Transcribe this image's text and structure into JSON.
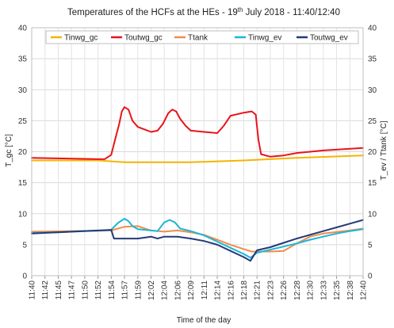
{
  "chart_data": {
    "type": "line",
    "title": {
      "prefix": "Temperatures of the HCFs at the HEs - 19",
      "sup": "th",
      "suffix": " July 2018 - 11:40/12:40"
    },
    "xlabel": "Time of the day",
    "ylabel_left": "T_gc [°C]",
    "ylabel_right": "T_ev / Ttank [°C]",
    "ylim_left": [
      0,
      40
    ],
    "ylim_right": [
      0,
      40
    ],
    "yticks": [
      "0",
      "5",
      "10",
      "15",
      "20",
      "25",
      "30",
      "35",
      "40"
    ],
    "x_tick_labels": [
      "11:40",
      "11:42",
      "11:45",
      "11:47",
      "11:50",
      "11:52",
      "11:54",
      "11:57",
      "11:59",
      "12:02",
      "12:04",
      "12:06",
      "12:09",
      "12:11",
      "12:14",
      "12:16",
      "12:18",
      "12:21",
      "12:23",
      "12:26",
      "12:28",
      "12:30",
      "12:33",
      "12:35",
      "12:38",
      "12:40"
    ],
    "grid": true,
    "legend_position": "top",
    "series": [
      {
        "name": "Tinwg_gc",
        "color": "#f5b400",
        "axis": "left",
        "points": [
          [
            0,
            18.6
          ],
          [
            5,
            18.6
          ],
          [
            7,
            18.3
          ],
          [
            12,
            18.3
          ],
          [
            16,
            18.6
          ],
          [
            18,
            18.8
          ],
          [
            20,
            19.0
          ],
          [
            25,
            19.4
          ]
        ]
      },
      {
        "name": "Toutwg_gc",
        "color": "#e8141b",
        "axis": "left",
        "points": [
          [
            0,
            19.0
          ],
          [
            5,
            18.8
          ],
          [
            5.5,
            18.8
          ],
          [
            6,
            19.5
          ],
          [
            6.3,
            22.0
          ],
          [
            6.6,
            24.5
          ],
          [
            6.8,
            26.5
          ],
          [
            7.0,
            27.2
          ],
          [
            7.3,
            26.8
          ],
          [
            7.6,
            25.0
          ],
          [
            8.0,
            24.0
          ],
          [
            8.5,
            23.6
          ],
          [
            9,
            23.2
          ],
          [
            9.5,
            23.4
          ],
          [
            9.9,
            24.5
          ],
          [
            10.3,
            26.2
          ],
          [
            10.6,
            26.8
          ],
          [
            10.9,
            26.5
          ],
          [
            11.2,
            25.3
          ],
          [
            11.6,
            24.2
          ],
          [
            12,
            23.4
          ],
          [
            13,
            23.2
          ],
          [
            14,
            23.0
          ],
          [
            14.5,
            24.2
          ],
          [
            15,
            25.8
          ],
          [
            16,
            26.3
          ],
          [
            16.6,
            26.5
          ],
          [
            16.9,
            26.0
          ],
          [
            17.1,
            22.0
          ],
          [
            17.3,
            19.6
          ],
          [
            18,
            19.2
          ],
          [
            19,
            19.4
          ],
          [
            20,
            19.8
          ],
          [
            22,
            20.2
          ],
          [
            25,
            20.6
          ]
        ]
      },
      {
        "name": "Ttank",
        "color": "#f08c4a",
        "axis": "right",
        "points": [
          [
            0,
            7.1
          ],
          [
            3,
            7.2
          ],
          [
            6,
            7.3
          ],
          [
            7,
            7.9
          ],
          [
            8,
            8.0
          ],
          [
            9,
            7.3
          ],
          [
            10,
            7.1
          ],
          [
            11,
            7.3
          ],
          [
            12,
            7.0
          ],
          [
            13,
            6.6
          ],
          [
            14,
            5.8
          ],
          [
            15,
            5.0
          ],
          [
            16,
            4.3
          ],
          [
            16.6,
            3.9
          ],
          [
            17,
            3.9
          ],
          [
            18,
            3.9
          ],
          [
            19,
            4.0
          ],
          [
            20,
            5.2
          ],
          [
            21,
            6.3
          ],
          [
            22,
            6.8
          ],
          [
            24,
            7.3
          ],
          [
            25,
            7.6
          ]
        ]
      },
      {
        "name": "Tinwg_ev",
        "color": "#1bb6d9",
        "axis": "right",
        "points": [
          [
            0,
            6.9
          ],
          [
            2,
            7.0
          ],
          [
            4,
            7.2
          ],
          [
            5.5,
            7.3
          ],
          [
            6,
            7.4
          ],
          [
            6.5,
            8.5
          ],
          [
            7.0,
            9.2
          ],
          [
            7.3,
            8.8
          ],
          [
            7.6,
            8.0
          ],
          [
            8,
            7.5
          ],
          [
            9,
            7.3
          ],
          [
            9.5,
            7.2
          ],
          [
            10,
            8.6
          ],
          [
            10.4,
            9.0
          ],
          [
            10.8,
            8.6
          ],
          [
            11.2,
            7.6
          ],
          [
            12,
            7.2
          ],
          [
            13,
            6.5
          ],
          [
            14,
            5.5
          ],
          [
            15,
            4.5
          ],
          [
            16,
            3.5
          ],
          [
            16.5,
            2.9
          ],
          [
            17,
            3.7
          ],
          [
            18,
            4.2
          ],
          [
            19,
            4.7
          ],
          [
            20,
            5.2
          ],
          [
            21,
            5.8
          ],
          [
            22,
            6.3
          ],
          [
            23,
            6.8
          ],
          [
            24,
            7.2
          ],
          [
            25,
            7.5
          ]
        ]
      },
      {
        "name": "Toutwg_ev",
        "color": "#243a78",
        "axis": "right",
        "points": [
          [
            0,
            6.8
          ],
          [
            3,
            7.1
          ],
          [
            5,
            7.3
          ],
          [
            6,
            7.4
          ],
          [
            6.2,
            6.0
          ],
          [
            7,
            6.0
          ],
          [
            8,
            6.0
          ],
          [
            9,
            6.3
          ],
          [
            9.5,
            6.0
          ],
          [
            10,
            6.3
          ],
          [
            11,
            6.3
          ],
          [
            12,
            6.0
          ],
          [
            13,
            5.6
          ],
          [
            14,
            5.0
          ],
          [
            15,
            4.0
          ],
          [
            16,
            3.0
          ],
          [
            16.5,
            2.4
          ],
          [
            17,
            4.1
          ],
          [
            18,
            4.6
          ],
          [
            19,
            5.3
          ],
          [
            20,
            6.0
          ],
          [
            21,
            6.6
          ],
          [
            22,
            7.2
          ],
          [
            23,
            7.8
          ],
          [
            24,
            8.4
          ],
          [
            25,
            9.0
          ]
        ]
      }
    ]
  }
}
